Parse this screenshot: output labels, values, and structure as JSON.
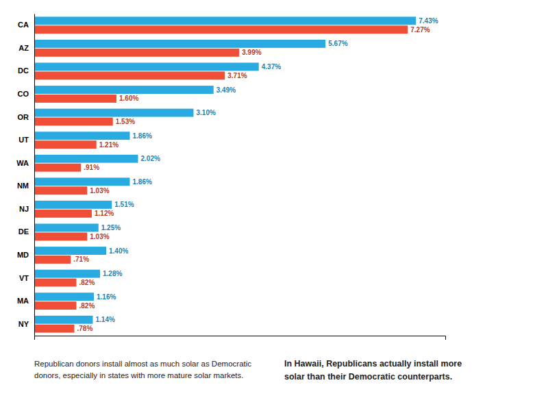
{
  "chart_data": {
    "type": "bar",
    "orientation": "horizontal",
    "categories": [
      "CA",
      "AZ",
      "DC",
      "CO",
      "OR",
      "UT",
      "WA",
      "NM",
      "NJ",
      "DE",
      "MD",
      "VT",
      "MA",
      "NY"
    ],
    "series": [
      {
        "color": "#29ABE2",
        "values": [
          7.43,
          5.67,
          4.37,
          3.49,
          3.1,
          1.86,
          2.02,
          1.86,
          1.51,
          1.25,
          1.4,
          1.28,
          1.16,
          1.14
        ],
        "value_labels": [
          "7.43%",
          "5.67%",
          "4.37%",
          "3.49%",
          "3.10%",
          "1.86%",
          "2.02%",
          "1.86%",
          "1.51%",
          "1.25%",
          "1.40%",
          "1.28%",
          "1.16%",
          "1.14%"
        ]
      },
      {
        "color": "#F04E37",
        "values": [
          7.27,
          3.99,
          3.71,
          1.6,
          1.53,
          1.21,
          0.91,
          1.03,
          1.12,
          1.03,
          0.71,
          0.82,
          0.82,
          0.78
        ],
        "value_labels": [
          "7.27%",
          "3.99%",
          "3.71%",
          "1.60%",
          "1.53%",
          "1.21%",
          ".91%",
          "1.03%",
          "1.12%",
          "1.03%",
          ".71%",
          ".82%",
          ".82%",
          ".78%"
        ]
      }
    ],
    "xlim": [
      0,
      8
    ],
    "tick_labels": "y",
    "data_labels": true,
    "annotations": [
      "Republican donors install almost as much solar as Democratic\ndonors, especially in states with more mature solar markets.",
      "In Hawaii, Republicans actually install more\nsolar than their Democratic counterparts."
    ]
  }
}
